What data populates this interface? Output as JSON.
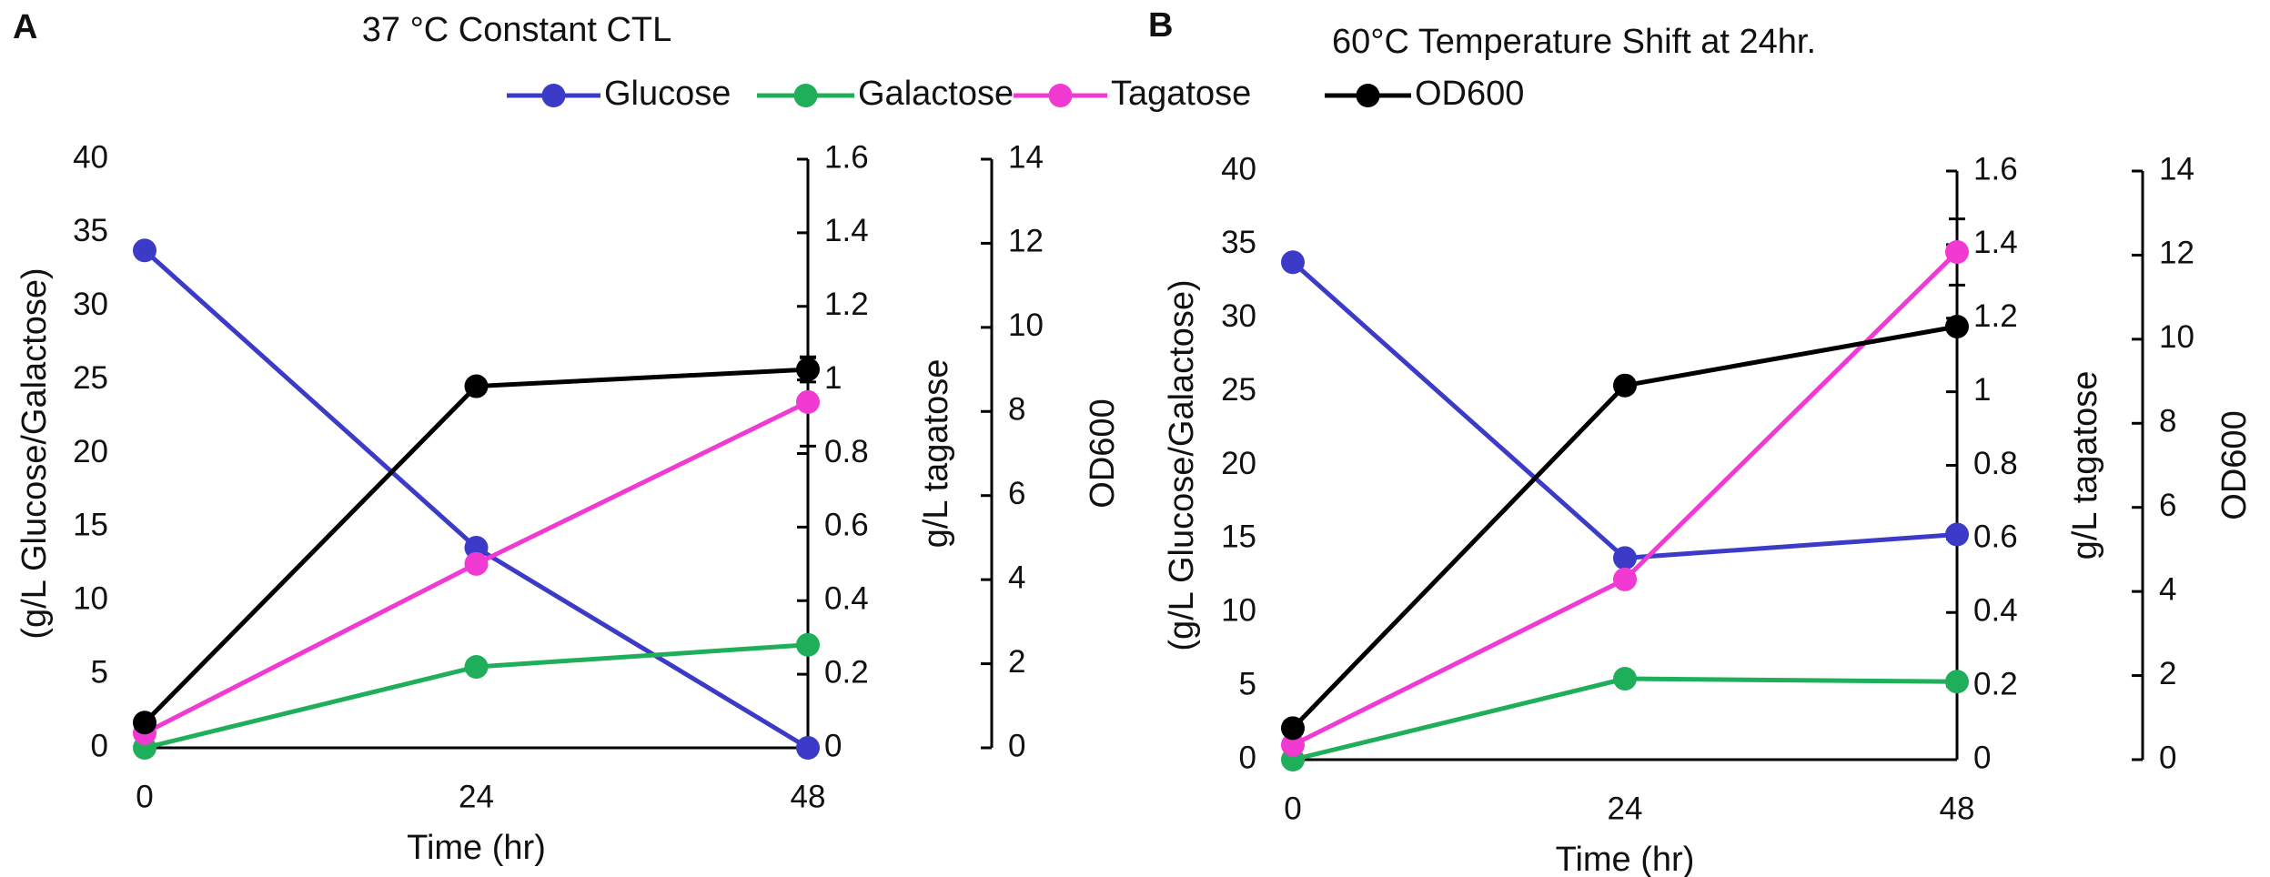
{
  "chart_data": [
    {
      "type": "line",
      "panel": "A",
      "title": "37 °C Constant CTL",
      "xlabel": "Time (hr)",
      "ylabel": "(g/L Glucose/Galactose)",
      "y2label": "g/L tagatose",
      "y3label": "OD600",
      "x": [
        0,
        24,
        48
      ],
      "xlim": [
        0,
        48
      ],
      "xticks": [
        0,
        24,
        48
      ],
      "ylim": [
        0,
        40
      ],
      "yticks": [
        0,
        5,
        10,
        15,
        20,
        25,
        30,
        35,
        40
      ],
      "y2lim": [
        0,
        1.6
      ],
      "y2ticks": [
        0,
        0.2,
        0.4,
        0.6,
        0.8,
        1,
        1.2,
        1.4,
        1.6
      ],
      "y3lim": [
        0,
        14
      ],
      "y3ticks": [
        0,
        2,
        4,
        6,
        8,
        10,
        12,
        14
      ],
      "series": [
        {
          "name": "Glucose",
          "color": "#3b3bc8",
          "values": [
            33.8,
            13.6,
            0
          ]
        },
        {
          "name": "Galactose",
          "color": "#1fae5a",
          "values": [
            0,
            5.5,
            7.0
          ]
        },
        {
          "name": "Tagatose",
          "color": "#f03ad2",
          "axis": "y2",
          "values": [
            0.04,
            0.5,
            0.94
          ],
          "errors": [
            null,
            null,
            0.12
          ]
        },
        {
          "name": "OD600",
          "color": "#000000",
          "axis": "y3",
          "values": [
            0.6,
            8.6,
            9.0
          ],
          "errors": [
            null,
            null,
            0.3
          ]
        }
      ]
    },
    {
      "type": "line",
      "panel": "B",
      "title": "60°C Temperature Shift at 24hr.",
      "xlabel": "Time (hr)",
      "ylabel": "(g/L Glucose/Galactose)",
      "y2label": "g/L tagatose",
      "y3label": "OD600",
      "x": [
        0,
        24,
        48
      ],
      "xlim": [
        0,
        48
      ],
      "xticks": [
        0,
        24,
        48
      ],
      "ylim": [
        0,
        40
      ],
      "yticks": [
        0,
        5,
        10,
        15,
        20,
        25,
        30,
        35,
        40
      ],
      "y2lim": [
        0,
        1.6
      ],
      "y2ticks": [
        0,
        0.2,
        0.4,
        0.6,
        0.8,
        1,
        1.2,
        1.4,
        1.6
      ],
      "y3lim": [
        0,
        14
      ],
      "y3ticks": [
        0,
        2,
        4,
        6,
        8,
        10,
        12,
        14
      ],
      "series": [
        {
          "color": "#3b3bc8",
          "values": [
            33.8,
            13.7,
            15.3
          ]
        },
        {
          "color": "#1fae5a",
          "values": [
            0,
            5.5,
            5.3
          ]
        },
        {
          "color": "#f03ad2",
          "axis": "y2",
          "values": [
            0.04,
            0.49,
            1.38
          ],
          "errors": [
            null,
            null,
            0.09
          ]
        },
        {
          "color": "#000000",
          "axis": "y3",
          "values": [
            0.75,
            8.9,
            10.3
          ],
          "errors": [
            null,
            null,
            0.1
          ]
        }
      ]
    }
  ]
}
